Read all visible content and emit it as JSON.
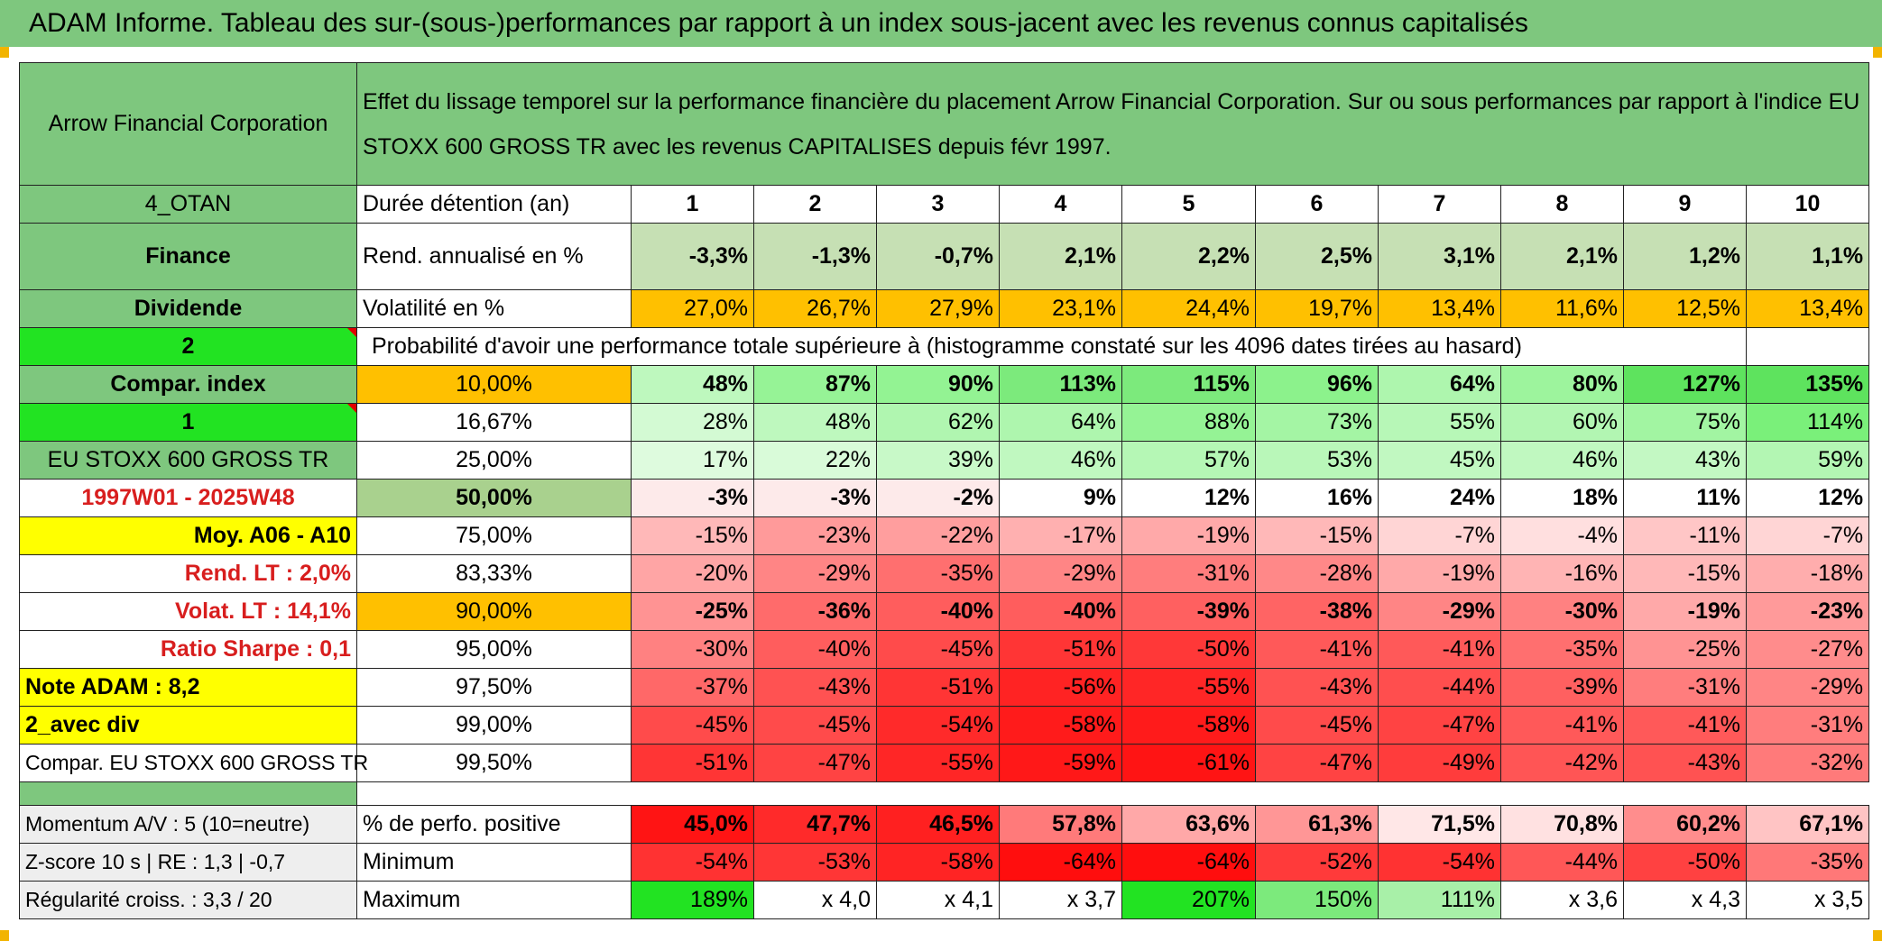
{
  "title": "ADAM Informe. Tableau des sur-(sous-)performances par rapport à un index sous-jacent avec les revenus connus capitalisés",
  "header": {
    "company": "Arrow Financial Corporation",
    "description": "Effet du lissage temporel sur la performance financière du placement Arrow Financial Corporation. Sur ou sous performances par rapport à l'indice EU STOXX 600 GROSS TR avec les revenus CAPITALISES depuis févr 1997."
  },
  "years": [
    "1",
    "2",
    "3",
    "4",
    "5",
    "6",
    "7",
    "8",
    "9",
    "10"
  ],
  "rows": {
    "duree": {
      "left": "4_OTAN",
      "label": "Durée détention (an)"
    },
    "rend": {
      "left": "Finance",
      "label": "Rend. annualisé en %",
      "values": [
        "-3,3%",
        "-1,3%",
        "-0,7%",
        "2,1%",
        "2,2%",
        "2,5%",
        "3,1%",
        "2,1%",
        "1,2%",
        "1,1%"
      ]
    },
    "vol": {
      "left": "Dividende",
      "label": "Volatilité en %",
      "values": [
        "27,0%",
        "26,7%",
        "27,9%",
        "23,1%",
        "24,4%",
        "19,7%",
        "13,4%",
        "11,6%",
        "12,5%",
        "13,4%"
      ]
    },
    "prob": {
      "left": "2",
      "label": "Probabilité d'avoir une performance totale supérieure à (histogramme constaté sur les 4096 dates tirées au hasard)"
    }
  },
  "percentile_rows": [
    {
      "left": "Compar. index",
      "pct": "10,00%",
      "values": [
        "48%",
        "87%",
        "90%",
        "113%",
        "115%",
        "96%",
        "64%",
        "80%",
        "127%",
        "135%"
      ]
    },
    {
      "left": "1",
      "pct": "16,67%",
      "values": [
        "28%",
        "48%",
        "62%",
        "64%",
        "88%",
        "73%",
        "55%",
        "60%",
        "75%",
        "114%"
      ]
    },
    {
      "left": "EU STOXX 600 GROSS TR",
      "pct": "25,00%",
      "values": [
        "17%",
        "22%",
        "39%",
        "46%",
        "57%",
        "53%",
        "45%",
        "46%",
        "43%",
        "59%"
      ]
    },
    {
      "left": "1997W01 - 2025W48",
      "pct": "50,00%",
      "values": [
        "-3%",
        "-3%",
        "-2%",
        "9%",
        "12%",
        "16%",
        "24%",
        "18%",
        "11%",
        "12%"
      ]
    },
    {
      "left": "Moy. A06 - A10",
      "pct": "75,00%",
      "values": [
        "-15%",
        "-23%",
        "-22%",
        "-17%",
        "-19%",
        "-15%",
        "-7%",
        "-4%",
        "-11%",
        "-7%"
      ]
    },
    {
      "left": "Rend. LT :   2,0%",
      "pct": "83,33%",
      "values": [
        "-20%",
        "-29%",
        "-35%",
        "-29%",
        "-31%",
        "-28%",
        "-19%",
        "-16%",
        "-15%",
        "-18%"
      ]
    },
    {
      "left": "Volat. LT :   14,1%",
      "pct": "90,00%",
      "values": [
        "-25%",
        "-36%",
        "-40%",
        "-40%",
        "-39%",
        "-38%",
        "-29%",
        "-30%",
        "-19%",
        "-23%"
      ]
    },
    {
      "left": "Ratio Sharpe :    0,1",
      "pct": "95,00%",
      "values": [
        "-30%",
        "-40%",
        "-45%",
        "-51%",
        "-50%",
        "-41%",
        "-41%",
        "-35%",
        "-25%",
        "-27%"
      ]
    },
    {
      "left": "Note ADAM : 8,2",
      "pct": "97,50%",
      "values": [
        "-37%",
        "-43%",
        "-51%",
        "-56%",
        "-55%",
        "-43%",
        "-44%",
        "-39%",
        "-31%",
        "-29%"
      ]
    },
    {
      "left": "2_avec div",
      "pct": "99,00%",
      "values": [
        "-45%",
        "-45%",
        "-54%",
        "-58%",
        "-58%",
        "-45%",
        "-47%",
        "-41%",
        "-41%",
        "-31%"
      ]
    },
    {
      "left": "Compar. EU STOXX 600 GROSS TR",
      "pct": "99,50%",
      "values": [
        "-51%",
        "-47%",
        "-55%",
        "-59%",
        "-61%",
        "-47%",
        "-49%",
        "-42%",
        "-43%",
        "-32%"
      ]
    }
  ],
  "summary_rows": [
    {
      "left": "Momentum A/V : 5 (10=neutre)",
      "label": "% de perfo. positive",
      "values": [
        "45,0%",
        "47,7%",
        "46,5%",
        "57,8%",
        "63,6%",
        "61,3%",
        "71,5%",
        "70,8%",
        "60,2%",
        "67,1%"
      ]
    },
    {
      "left": "Z-score 10 s | RE : 1,3 | -0,7",
      "label": "Minimum",
      "values": [
        "-54%",
        "-53%",
        "-58%",
        "-64%",
        "-64%",
        "-52%",
        "-54%",
        "-44%",
        "-50%",
        "-35%"
      ]
    },
    {
      "left": "Régularité croiss. : 3,3 / 20",
      "label": "Maximum",
      "values": [
        "189%",
        "x 4,0",
        "x 4,1",
        "x 3,7",
        "207%",
        "150%",
        "111%",
        "x 3,6",
        "x 4,3",
        "x 3,5"
      ]
    }
  ],
  "colors": {
    "header_green": "#7ec77e",
    "bright_green": "#22e322",
    "yellow": "#ffff00",
    "orange": "#ffc000",
    "light_green": "#a9d18e",
    "red_text": "#d81e1e"
  }
}
